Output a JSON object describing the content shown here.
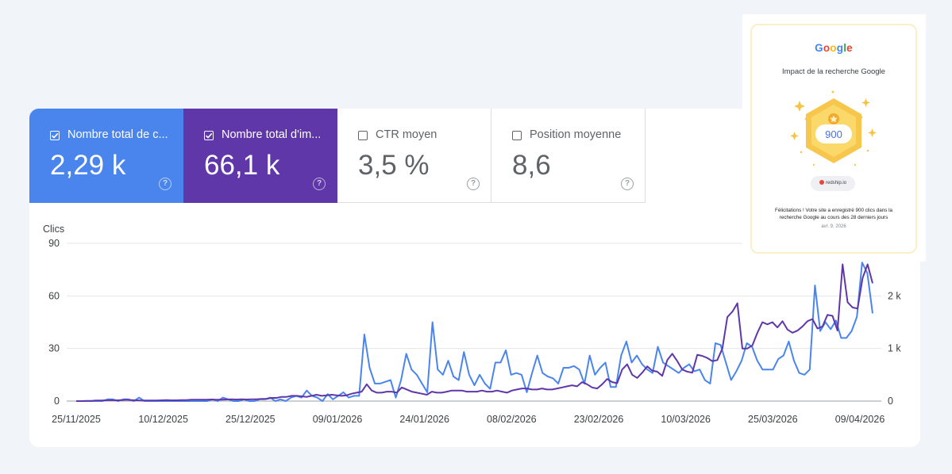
{
  "metrics": [
    {
      "label": "Nombre total de c...",
      "value": "2,29 k",
      "checked": true,
      "color": "#4a85ed"
    },
    {
      "label": "Nombre total d'im...",
      "value": "66,1 k",
      "checked": true,
      "color": "#5f37a9"
    },
    {
      "label": "CTR moyen",
      "value": "3,5 %",
      "checked": false
    },
    {
      "label": "Position moyenne",
      "value": "8,6",
      "checked": false
    }
  ],
  "help_glyph": "?",
  "award": {
    "logo": [
      "G",
      "o",
      "o",
      "g",
      "l",
      "e"
    ],
    "logo_colors": [
      "#4285f4",
      "#ea4335",
      "#fbbc05",
      "#4285f4",
      "#34a853",
      "#ea4335"
    ],
    "title": "Impact de la recherche Google",
    "badge_value": "900",
    "site": "redship.io",
    "message": "Félicitations ! Votre site a enregistré 900 clics dans la recherche Google au cours des 28 derniers jours",
    "date": "avr. 9, 2026"
  },
  "chart_data": {
    "type": "line",
    "ylabel_left": "Clics",
    "yticks_left": [
      "0",
      "30",
      "60",
      "90"
    ],
    "ylim_left": [
      0,
      90
    ],
    "yticks_right": [
      "0",
      "1 k",
      "2 k"
    ],
    "ylim_right": [
      0,
      3000
    ],
    "xticks": [
      "25/11/2025",
      "10/12/2025",
      "25/12/2025",
      "09/01/2026",
      "24/01/2026",
      "08/02/2026",
      "23/02/2026",
      "10/03/2026",
      "25/03/2026",
      "09/04/2026"
    ],
    "grid": true,
    "series": [
      {
        "key": "clicks",
        "axis": "left",
        "color": "#4a85ed",
        "values": [
          0,
          0,
          0,
          0,
          0,
          0,
          1,
          1,
          0,
          1,
          1,
          0,
          2,
          0,
          0,
          0,
          0,
          0,
          0,
          0,
          0,
          0,
          0,
          0,
          0,
          0,
          1,
          0,
          2,
          1,
          0,
          0,
          1,
          0,
          0,
          1,
          1,
          2,
          0,
          1,
          0,
          2,
          3,
          2,
          6,
          3,
          2,
          0,
          4,
          1,
          3,
          5,
          2,
          3,
          3,
          38,
          19,
          10,
          10,
          11,
          12,
          2,
          12,
          27,
          18,
          15,
          10,
          5,
          45,
          18,
          15,
          23,
          14,
          12,
          28,
          15,
          9,
          15,
          10,
          7,
          22,
          22,
          29,
          15,
          16,
          15,
          5,
          16,
          26,
          16,
          14,
          13,
          10,
          19,
          19,
          20,
          18,
          10,
          26,
          15,
          19,
          22,
          8,
          8,
          26,
          34,
          22,
          26,
          21,
          18,
          16,
          31,
          22,
          20,
          18,
          16,
          19,
          21,
          17,
          18,
          12,
          10,
          33,
          32,
          22,
          12,
          17,
          23,
          33,
          31,
          23,
          18,
          18,
          18,
          24,
          26,
          34,
          23,
          16,
          15,
          18,
          66,
          40,
          45,
          41,
          46,
          36,
          36,
          40,
          48,
          79,
          73,
          50
        ],
        "values_right": [
          0
        ]
      },
      {
        "key": "impressions",
        "axis": "right",
        "color": "#5f37a9",
        "values": [
          0,
          0,
          5,
          5,
          10,
          10,
          15,
          20,
          15,
          20,
          25,
          20,
          15,
          10,
          10,
          10,
          10,
          15,
          20,
          15,
          15,
          20,
          20,
          25,
          25,
          25,
          25,
          30,
          25,
          25,
          30,
          35,
          30,
          35,
          30,
          35,
          35,
          40,
          40,
          60,
          60,
          80,
          80,
          100,
          100,
          90,
          80,
          100,
          120,
          100,
          110,
          120,
          110,
          100,
          110,
          140,
          160,
          180,
          320,
          200,
          160,
          160,
          180,
          180,
          160,
          260,
          220,
          180,
          160,
          140,
          120,
          180,
          160,
          160,
          180,
          200,
          200,
          200,
          180,
          180,
          180,
          200,
          180,
          180,
          200,
          180,
          160,
          200,
          220,
          240,
          240,
          220,
          220,
          240,
          220,
          220,
          240,
          260,
          280,
          300,
          280,
          360,
          320,
          260,
          240,
          320,
          420,
          360,
          340,
          600,
          700,
          500,
          440,
          540,
          660,
          580,
          560,
          480,
          780,
          900,
          760,
          600,
          560,
          540,
          880,
          860,
          820,
          760,
          780,
          1000,
          1600,
          1700,
          1860,
          1000,
          1000,
          1060,
          1300,
          1500,
          1460,
          1500,
          1400,
          1520,
          1360,
          1300,
          1340,
          1420,
          1520,
          1560,
          1380,
          1420,
          1640,
          1620,
          1340,
          2600,
          1880,
          1780,
          1760,
          2340,
          2600,
          2240
        ]
      }
    ]
  }
}
